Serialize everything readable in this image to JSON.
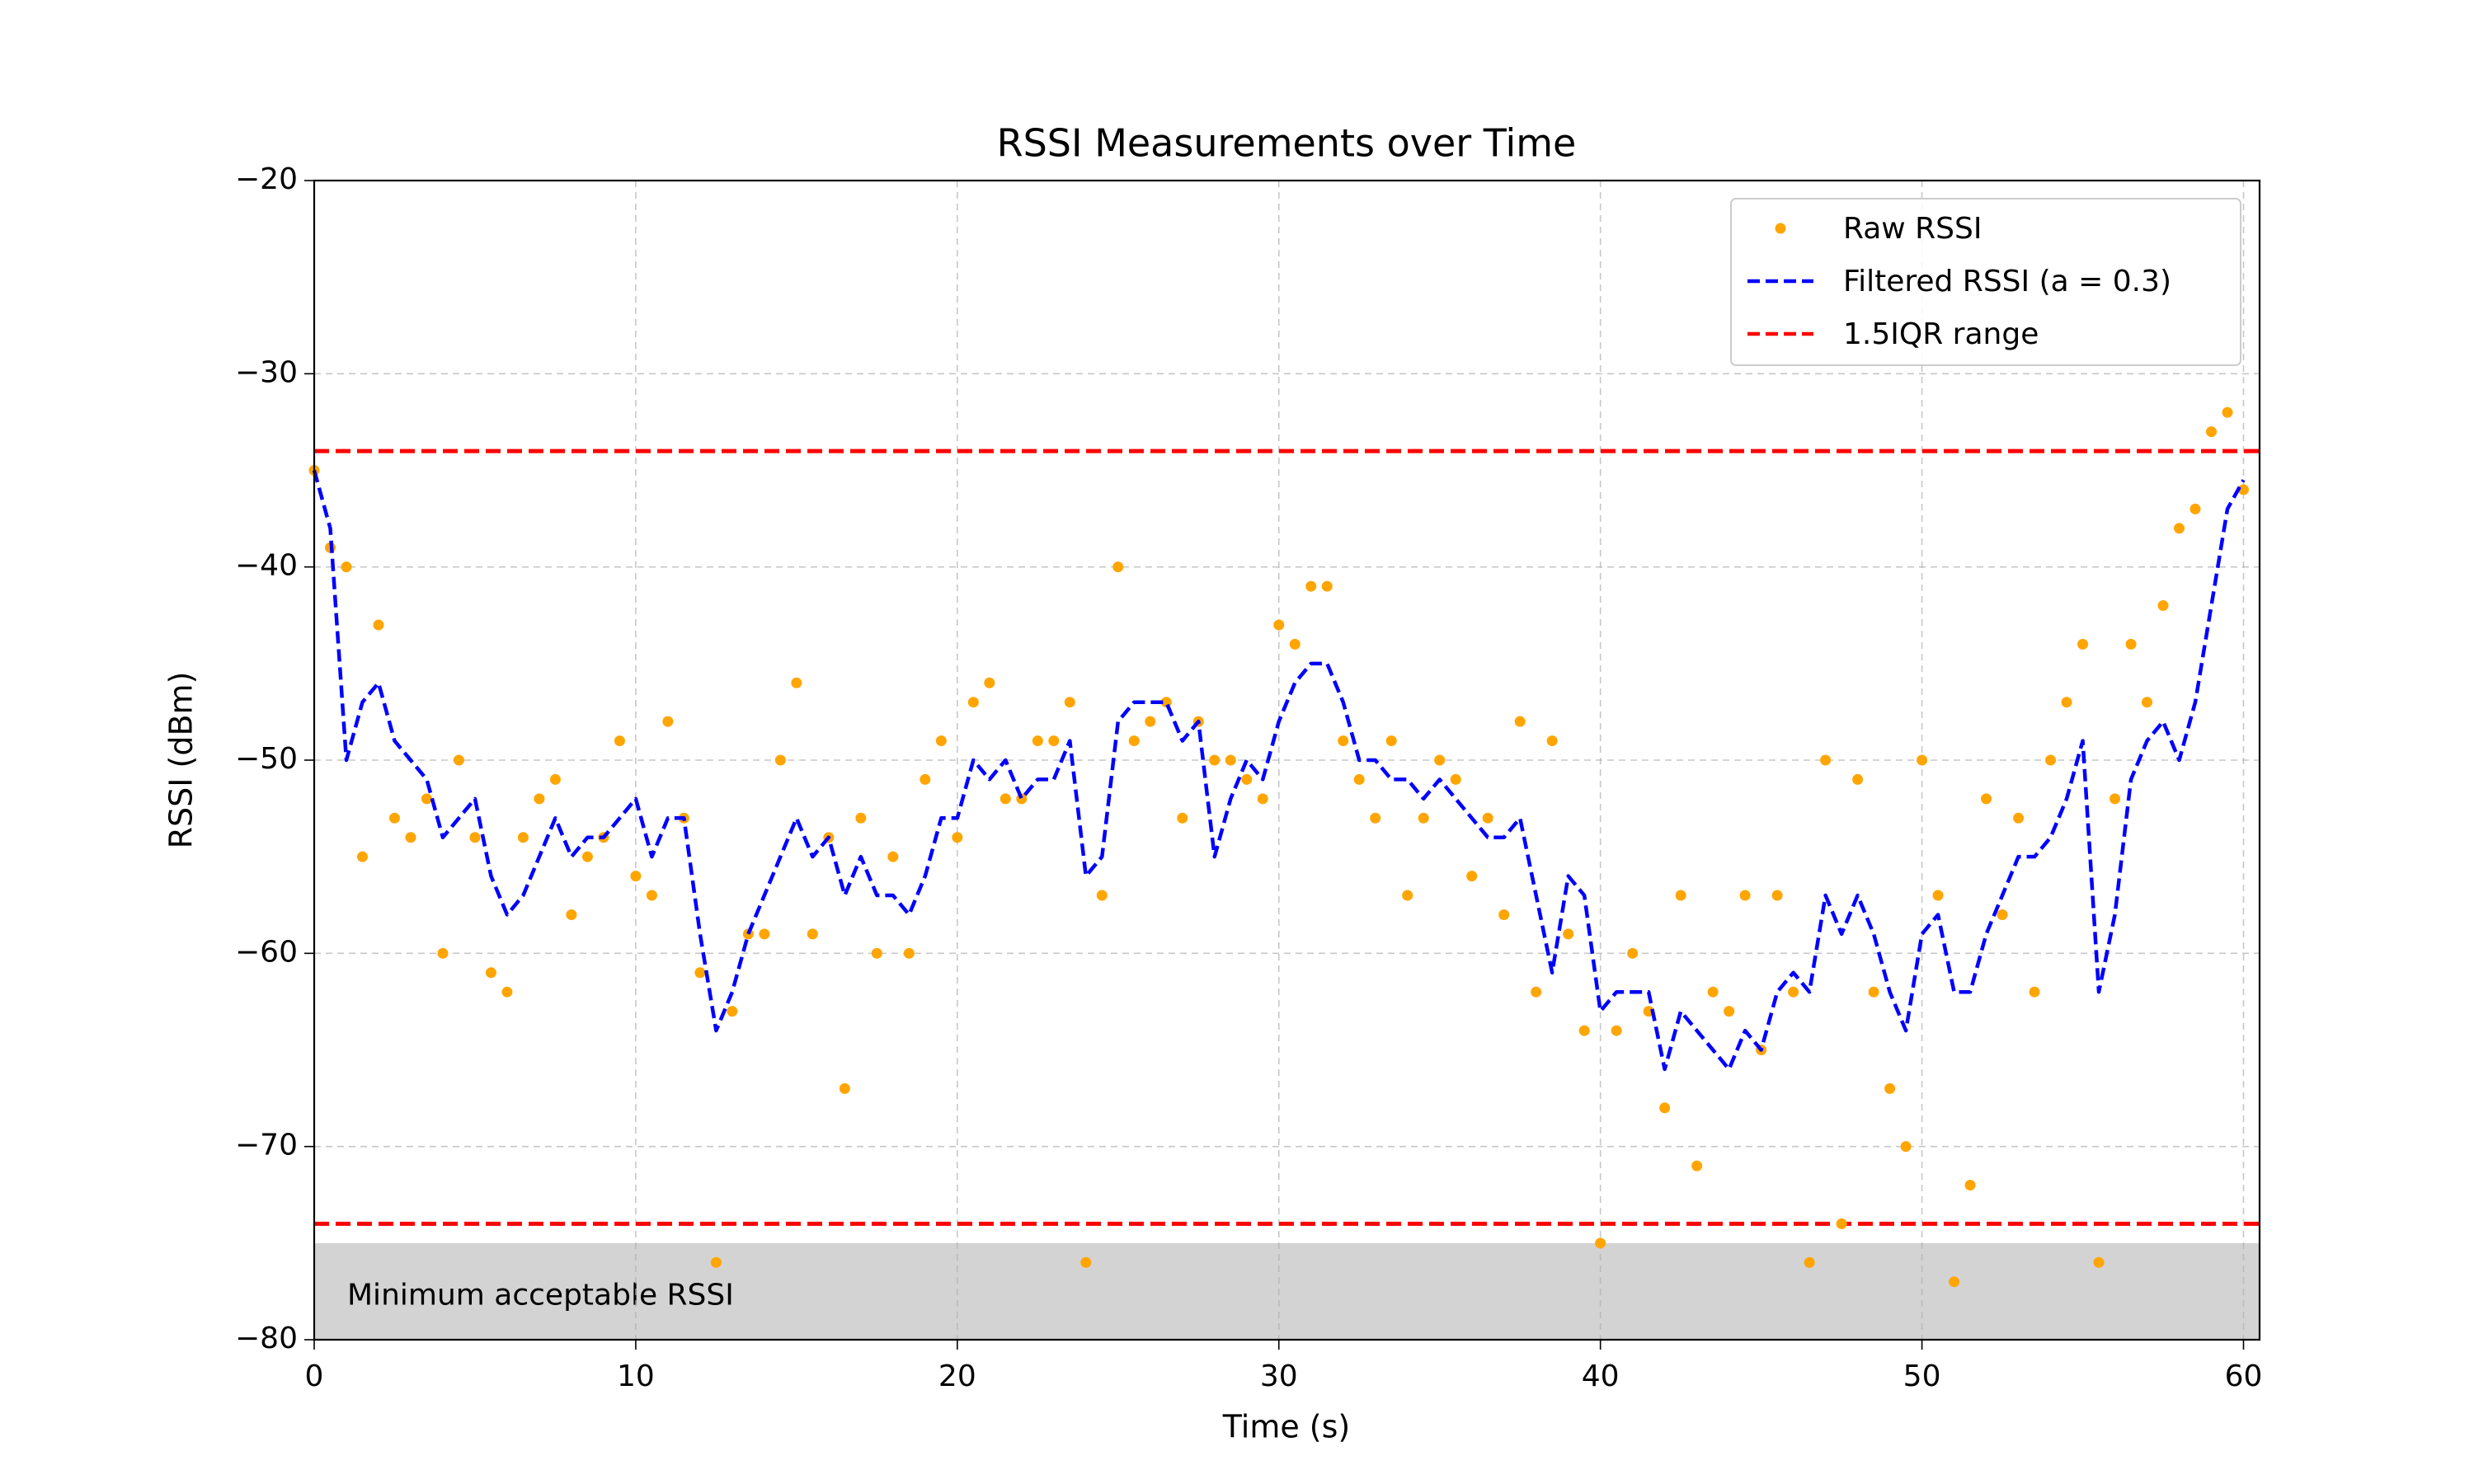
{
  "chart_data": {
    "type": "line",
    "title": "RSSI Measurements over Time",
    "x_label": "Time (s)",
    "y_label": "RSSI (dBm)",
    "xlim": [
      0,
      60.5
    ],
    "ylim": [
      -80,
      -20
    ],
    "xticks": [
      0,
      10,
      20,
      30,
      40,
      50,
      60
    ],
    "yticks": [
      {
        "value": -80,
        "label": "−80"
      },
      {
        "value": -70,
        "label": "−70"
      },
      {
        "value": -60,
        "label": "−60"
      },
      {
        "value": -50,
        "label": "−50"
      },
      {
        "value": -40,
        "label": "−40"
      },
      {
        "value": -30,
        "label": "−30"
      },
      {
        "value": -20,
        "label": "−20"
      }
    ],
    "grid": true,
    "legend": "upper right",
    "x": [
      0,
      0.5,
      1,
      1.5,
      2,
      2.5,
      3,
      3.5,
      4,
      4.5,
      5,
      5.5,
      6,
      6.5,
      7,
      7.5,
      8,
      8.5,
      9,
      9.5,
      10,
      10.5,
      11,
      11.5,
      12,
      12.5,
      13,
      13.5,
      14,
      14.5,
      15,
      15.5,
      16,
      16.5,
      17,
      17.5,
      18,
      18.5,
      19,
      19.5,
      20,
      20.5,
      21,
      21.5,
      22,
      22.5,
      23,
      23.5,
      24,
      24.5,
      25,
      25.5,
      26,
      26.5,
      27,
      27.5,
      28,
      28.5,
      29,
      29.5,
      30,
      30.5,
      31,
      31.5,
      32,
      32.5,
      33,
      33.5,
      34,
      34.5,
      35,
      35.5,
      36,
      36.5,
      37,
      37.5,
      38,
      38.5,
      39,
      39.5,
      40,
      40.5,
      41,
      41.5,
      42,
      42.5,
      43,
      43.5,
      44,
      44.5,
      45,
      45.5,
      46,
      46.5,
      47,
      47.5,
      48,
      48.5,
      49,
      49.5,
      50,
      50.5,
      51,
      51.5,
      52,
      52.5,
      53,
      53.5,
      54,
      54.5,
      55,
      55.5,
      56,
      56.5,
      57,
      57.5,
      58,
      58.5,
      59,
      59.5,
      60
    ],
    "series": [
      {
        "name": "Raw RSSI",
        "style": "markers",
        "color": "#ffa500",
        "values": [
          -35,
          -39,
          -40,
          -55,
          -43,
          -53,
          -54,
          -52,
          -60,
          -50,
          -54,
          -61,
          -62,
          -54,
          -52,
          -51,
          -58,
          -55,
          -54,
          -49,
          -56,
          -57,
          -48,
          -53,
          -61,
          -76,
          -63,
          -59,
          -59,
          -50,
          -46,
          -59,
          -54,
          -67,
          -53,
          -60,
          -55,
          -60,
          -51,
          -49,
          -54,
          -47,
          -46,
          -52,
          -52,
          -49,
          -49,
          -47,
          -76,
          -57,
          -40,
          -49,
          -48,
          -47,
          -53,
          -48,
          -50,
          -50,
          -51,
          -52,
          -43,
          -44,
          -41,
          -41,
          -49,
          -51,
          -53,
          -49,
          -57,
          -53,
          -50,
          -51,
          -56,
          -53,
          -58,
          -48,
          -62,
          -49,
          -59,
          -64,
          -75,
          -64,
          -60,
          -63,
          -68,
          -57,
          -71,
          -62,
          -63,
          -57,
          -65,
          -57,
          -62,
          -76,
          -50,
          -74,
          -51,
          -62,
          -67,
          -70,
          -50,
          -57,
          -77,
          -72,
          -52,
          -58,
          -53,
          -62,
          -50,
          -47,
          -44,
          -76,
          -52,
          -44,
          -47,
          -42,
          -38,
          -37,
          -33,
          -32,
          -36
        ]
      },
      {
        "name": "Filtered RSSI (a = 0.3)",
        "style": "dashed",
        "color": "#0000ff",
        "values": [
          -35,
          -38,
          -50,
          -47,
          -46,
          -49,
          -50,
          -51,
          -54,
          -53,
          -52,
          -56,
          -58,
          -57,
          -55,
          -53,
          -55,
          -54,
          -54,
          -53,
          -52,
          -55,
          -53,
          -53,
          -59,
          -64,
          -62,
          -59,
          -57,
          -55,
          -53,
          -55,
          -54,
          -57,
          -55,
          -57,
          -57,
          -58,
          -56,
          -53,
          -53,
          -50,
          -51,
          -50,
          -52,
          -51,
          -51,
          -49,
          -56,
          -55,
          -48,
          -47,
          -47,
          -47,
          -49,
          -48,
          -55,
          -52,
          -50,
          -51,
          -48,
          -46,
          -45,
          -45,
          -47,
          -50,
          -50,
          -51,
          -51,
          -52,
          -51,
          -52,
          -53,
          -54,
          -54,
          -53,
          -57,
          -61,
          -56,
          -57,
          -63,
          -62,
          -62,
          -62,
          -66,
          -63,
          -64,
          -65,
          -66,
          -64,
          -65,
          -62,
          -61,
          -62,
          -57,
          -59,
          -57,
          -59,
          -62,
          -64,
          -59,
          -58,
          -62,
          -62,
          -59,
          -57,
          -55,
          -55,
          -54,
          -52,
          -49,
          -62,
          -58,
          -51,
          -49,
          -48,
          -50,
          -47,
          -42,
          -37,
          -35.5
        ]
      }
    ],
    "hlines": {
      "name": "1.5IQR range",
      "color": "#ff0000",
      "values": [
        -34,
        -74
      ]
    },
    "shaded_region": {
      "ymin": -80,
      "ymax": -75,
      "color": "#d3d3d3",
      "label": "Minimum acceptable RSSI"
    }
  }
}
